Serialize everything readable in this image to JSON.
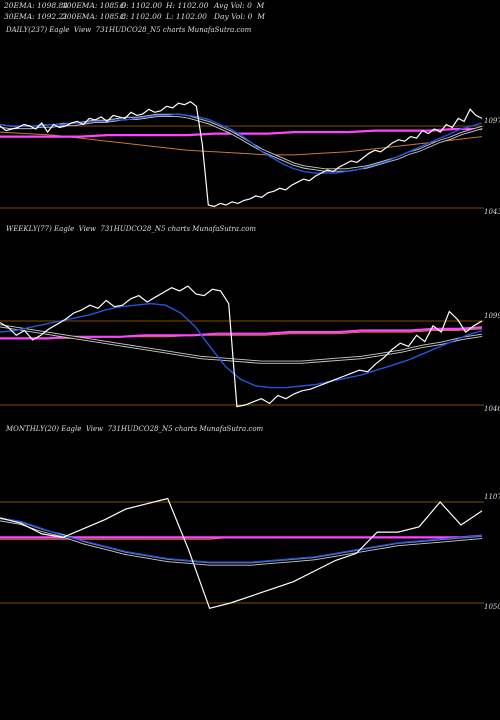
{
  "header": {
    "ema20": "20EMA: 1098.84",
    "ema100": "100EMA: 1085.6",
    "open": "O: 1102.00",
    "high": "H: 1102.00",
    "avg_vol": "Avg Vol: 0  M",
    "ema30": "30EMA: 1092.21",
    "ema200": "200EMA: 1085.8",
    "close": "C: 1102.00",
    "low": "L: 1102.00",
    "day_vol": "Day Vol: 0  M"
  },
  "colors": {
    "background": "#000000",
    "price": "#ffffff",
    "ema_short": "#2255dd",
    "ema_long": "#ff44ff",
    "ema_mid": "#cc7733",
    "grid": "#aa6600"
  },
  "chart_data": [
    {
      "type": "line",
      "title": "DAILY(237) Eagle  View  731HUDCO28_N5 charts MunafaSutra.com",
      "ylim": [
        1043,
        1097
      ],
      "y_labels": [
        "1097",
        "1043"
      ],
      "price": [
        1097,
        1094,
        1095,
        1096,
        1098,
        1097,
        1095,
        1099,
        1093,
        1098,
        1096,
        1097,
        1099,
        1100,
        1098,
        1102,
        1101,
        1103,
        1100,
        1104,
        1103,
        1102,
        1106,
        1104,
        1105,
        1108,
        1106,
        1107,
        1110,
        1109,
        1112,
        1111,
        1113,
        1110,
        1085,
        1045,
        1044,
        1046,
        1045,
        1047,
        1046,
        1048,
        1049,
        1051,
        1050,
        1053,
        1054,
        1056,
        1055,
        1058,
        1060,
        1062,
        1061,
        1064,
        1066,
        1068,
        1067,
        1070,
        1072,
        1074,
        1073,
        1076,
        1079,
        1081,
        1080,
        1083,
        1086,
        1088,
        1087,
        1090,
        1089,
        1094,
        1092,
        1095,
        1093,
        1098,
        1096,
        1102,
        1100,
        1108,
        1104,
        1102
      ],
      "ema20": [
        1098,
        1097,
        1097,
        1097,
        1097,
        1098,
        1098,
        1099,
        1099,
        1100,
        1100,
        1101,
        1101,
        1102,
        1103,
        1104,
        1104,
        1105,
        1104,
        1103,
        1101,
        1098,
        1095,
        1091,
        1086,
        1080,
        1076,
        1072,
        1069,
        1067,
        1066,
        1066,
        1066,
        1067,
        1068,
        1070,
        1072,
        1074,
        1077,
        1080,
        1083,
        1086,
        1089,
        1092,
        1095,
        1097,
        1099
      ],
      "ema30": [
        1097,
        1096,
        1096,
        1096,
        1097,
        1097,
        1098,
        1098,
        1099,
        1100,
        1100,
        1101,
        1102,
        1102,
        1103,
        1104,
        1104,
        1104,
        1103,
        1101,
        1099,
        1096,
        1093,
        1089,
        1085,
        1081,
        1078,
        1075,
        1072,
        1070,
        1069,
        1068,
        1068,
        1068,
        1069,
        1070,
        1072,
        1074,
        1076,
        1079,
        1081,
        1084,
        1087,
        1089,
        1092,
        1094,
        1096
      ],
      "ema100": [
        1090,
        1090,
        1090,
        1090,
        1091,
        1091,
        1091,
        1091,
        1092,
        1092,
        1092,
        1093,
        1093,
        1093,
        1094,
        1094,
        1094,
        1095,
        1095
      ],
      "ema200": [
        1093,
        1092,
        1091,
        1089,
        1087,
        1085,
        1083,
        1081,
        1080,
        1079,
        1078,
        1078,
        1079,
        1080,
        1082,
        1084,
        1086,
        1088,
        1090
      ]
    },
    {
      "type": "line",
      "title": "WEEKLY(77) Eagle  View  731HUDCO28_N5 charts MunafaSutra.com",
      "ylim": [
        1046,
        1099
      ],
      "y_labels": [
        "1099",
        "1046"
      ],
      "price": [
        1098,
        1095,
        1090,
        1093,
        1087,
        1090,
        1094,
        1097,
        1100,
        1104,
        1106,
        1109,
        1107,
        1112,
        1108,
        1109,
        1113,
        1115,
        1111,
        1114,
        1117,
        1120,
        1118,
        1121,
        1116,
        1115,
        1119,
        1118,
        1110,
        1045,
        1046,
        1048,
        1050,
        1047,
        1052,
        1050,
        1053,
        1055,
        1056,
        1058,
        1060,
        1062,
        1064,
        1066,
        1068,
        1067,
        1072,
        1076,
        1081,
        1085,
        1083,
        1090,
        1086,
        1096,
        1092,
        1105,
        1100,
        1092,
        1096,
        1099
      ],
      "ema20": [
        1092,
        1093,
        1095,
        1097,
        1099,
        1101,
        1103,
        1106,
        1108,
        1109,
        1110,
        1109,
        1104,
        1095,
        1082,
        1070,
        1062,
        1058,
        1057,
        1057,
        1058,
        1059,
        1061,
        1063,
        1065,
        1068,
        1071,
        1074,
        1078,
        1082,
        1086,
        1090,
        1093
      ],
      "ema30": [
        1096,
        1094,
        1092,
        1090,
        1088,
        1086,
        1084,
        1082,
        1080,
        1078,
        1076,
        1075,
        1074,
        1073,
        1073,
        1073,
        1074,
        1075,
        1076,
        1078,
        1080,
        1083,
        1085,
        1088,
        1090
      ],
      "ema100": [
        1088,
        1088,
        1088,
        1089,
        1089,
        1089,
        1090,
        1090,
        1090,
        1091,
        1091,
        1091,
        1092,
        1092,
        1092,
        1093,
        1093,
        1093,
        1094,
        1094,
        1095
      ],
      "ema200": [
        1088,
        1088,
        1088,
        1088,
        1089,
        1089,
        1089,
        1089,
        1090,
        1090,
        1090,
        1090,
        1091,
        1091,
        1091,
        1092,
        1092,
        1092,
        1093,
        1093,
        1094
      ]
    },
    {
      "type": "line",
      "title": "MONTHLY(20) Eagle  View  731HUDCO28_N5 charts MunafaSutra.com",
      "ylim": [
        1050,
        1107
      ],
      "y_labels": [
        "1107",
        "1050"
      ],
      "price": [
        1098,
        1095,
        1089,
        1087,
        1092,
        1097,
        1103,
        1106,
        1109,
        1080,
        1047,
        1050,
        1054,
        1058,
        1062,
        1068,
        1074,
        1078,
        1090,
        1090,
        1093,
        1107,
        1094,
        1102
      ],
      "ema20": [
        1098,
        1096,
        1092,
        1088,
        1085,
        1082,
        1079,
        1077,
        1075,
        1074,
        1073,
        1073,
        1073,
        1074,
        1075,
        1076,
        1078,
        1080,
        1082,
        1084,
        1085,
        1086,
        1087,
        1088
      ],
      "ema30": [
        1097,
        1095,
        1091,
        1088,
        1084,
        1081,
        1078,
        1076,
        1074,
        1073,
        1072,
        1072,
        1072,
        1073,
        1074,
        1075,
        1077,
        1079,
        1081,
        1083,
        1084,
        1085,
        1086,
        1087
      ],
      "ema100": [
        1087,
        1087,
        1087,
        1087,
        1087,
        1087,
        1087,
        1087,
        1087,
        1087,
        1087,
        1087,
        1087,
        1087,
        1087,
        1087,
        1087,
        1087,
        1087,
        1087,
        1087,
        1087,
        1087,
        1088
      ],
      "ema200": [
        1086,
        1086,
        1086,
        1086,
        1086,
        1086,
        1086,
        1086,
        1086,
        1086,
        1086,
        1087,
        1087,
        1087,
        1087,
        1087,
        1087,
        1087,
        1087,
        1087,
        1087,
        1087,
        1087,
        1088
      ]
    }
  ]
}
